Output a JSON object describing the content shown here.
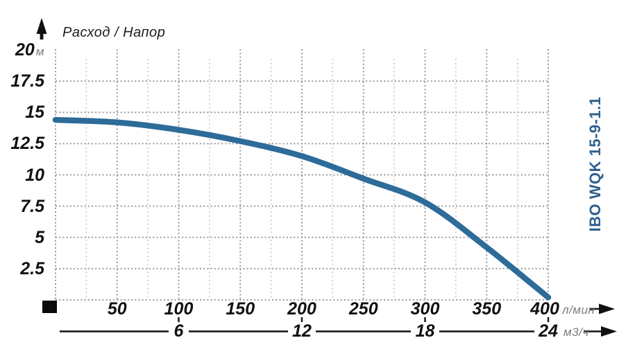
{
  "title": "Расход / Напор",
  "brand_label": "IBO WQK 15-9-1.1",
  "colors": {
    "curve": "#2d6b99",
    "brand_text": "#2d5f8d",
    "grid_major": "#9a9a9a",
    "grid_minor": "#c8c8c8",
    "axis_black": "#111111",
    "unit_text": "#7d7d7d"
  },
  "chart_data": {
    "type": "line",
    "title": "Расход / Напор",
    "grid": "dotted",
    "legend_position": "none",
    "xlim": [
      0,
      400
    ],
    "ylim": [
      0,
      20
    ],
    "x_axis_primary": {
      "unit": "л/мин",
      "ticks": [
        50,
        100,
        150,
        200,
        250,
        300,
        350,
        400
      ]
    },
    "x_axis_secondary": {
      "unit": "м3/ч",
      "ticks": [
        6,
        12,
        18,
        24
      ]
    },
    "y_axis": {
      "unit": "м",
      "ticks": [
        2.5,
        5,
        7.5,
        10,
        12.5,
        15,
        17.5,
        20
      ]
    },
    "series": [
      {
        "name": "IBO WQK 15-9-1.1",
        "x_flow_l_min": [
          0,
          50,
          100,
          150,
          200,
          250,
          300,
          350,
          400
        ],
        "head_m": [
          14.4,
          14.2,
          13.6,
          12.7,
          11.5,
          9.7,
          7.8,
          4.2,
          0.2
        ]
      }
    ]
  }
}
